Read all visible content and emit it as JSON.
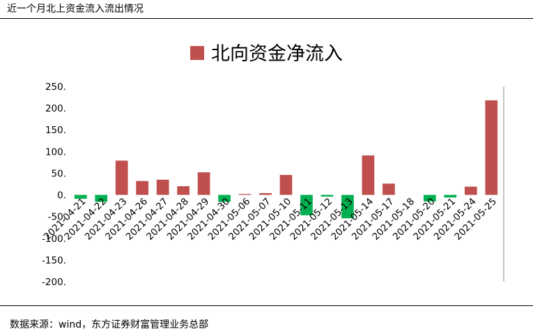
{
  "header": {
    "title": "近一个月北上资金流入流出情况"
  },
  "footer": {
    "source": "数据来源：wind，东方证券财富管理业务总部"
  },
  "chart_data": {
    "type": "bar",
    "title": "",
    "xlabel": "",
    "ylabel": "",
    "ylim": [
      -200,
      250
    ],
    "yticks": [
      250,
      200,
      150,
      100,
      50,
      0,
      -50,
      -100,
      -150,
      -200
    ],
    "ytick_labels": [
      "250.",
      "200.",
      "150.",
      "100.",
      "50.",
      "0.",
      "-50.",
      "-100.",
      "-150.",
      "-200."
    ],
    "grid": false,
    "legend": "top-center",
    "colors": {
      "positive": "#C0504D",
      "negative": "#00B050"
    },
    "categories": [
      "2021-04-21",
      "2021-04-22",
      "2021-04-23",
      "2021-04-26",
      "2021-04-27",
      "2021-04-28",
      "2021-04-29",
      "2021-04-30",
      "2021-05-06",
      "2021-05-07",
      "2021-05-10",
      "2021-05-11",
      "2021-05-12",
      "2021-05-13",
      "2021-05-14",
      "2021-05-17",
      "2021-05-18",
      "2021-05-20",
      "2021-05-21",
      "2021-05-24",
      "2021-05-25"
    ],
    "series": [
      {
        "name": "北向资金净流入",
        "values": [
          -9,
          -16,
          79,
          32,
          35,
          20,
          52,
          -16,
          2,
          4,
          46,
          -47,
          -4,
          -54,
          91,
          26,
          0,
          -15,
          -6,
          19,
          218
        ]
      }
    ]
  }
}
